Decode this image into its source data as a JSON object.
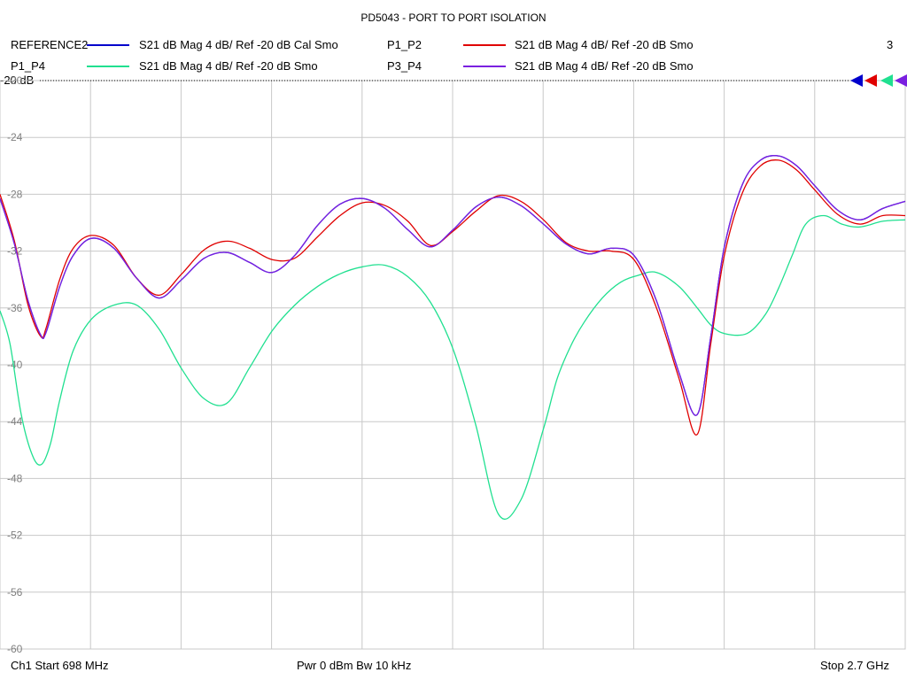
{
  "title": "PD5043 - PORT TO PORT ISOLATION",
  "legend": [
    {
      "name": "REFERENCE2",
      "desc": "S21  dB Mag  4 dB/ Ref -20 dB  Cal Smo",
      "color": "#0000cc"
    },
    {
      "name": "P1_P2",
      "desc": "S21  dB Mag  4 dB/ Ref -20 dB  Smo",
      "color": "#e00000"
    },
    {
      "name": "P1_P4",
      "desc": "S21  dB Mag  4 dB/ Ref -20 dB  Smo",
      "color": "#20e090"
    },
    {
      "name": "P3_P4",
      "desc": "S21  dB Mag  4 dB/ Ref -20 dB  Smo",
      "color": "#7a20e0"
    }
  ],
  "trace_count": "3",
  "ref_label": "-20 dB",
  "footer": {
    "start": "Ch1  Start  698 MHz",
    "power": "Pwr  0 dBm  Bw  10 kHz",
    "stop": "Stop  2.7 GHz"
  },
  "chart_data": {
    "type": "line",
    "title": "PD5043 - PORT TO PORT ISOLATION",
    "xlim": [
      698,
      2700
    ],
    "ylim": [
      -60,
      -20
    ],
    "x_unit": "MHz",
    "y_unit": "dB",
    "yticks": [
      -20,
      -24,
      -28,
      -32,
      -36,
      -40,
      -44,
      -48,
      -52,
      -56,
      -60
    ],
    "ytick_labels": [
      "-20",
      "-24",
      "-28",
      "-32",
      "-36",
      "-40",
      "-44",
      "-48",
      "-52",
      "-56",
      "-60"
    ],
    "grid": true,
    "series": [
      {
        "name": "REFERENCE2",
        "color": "#0000cc",
        "x": [
          698,
          730,
          760,
          788,
          800,
          830,
          860,
          900,
          950,
          1000,
          1050,
          1100,
          1150,
          1200,
          1250,
          1300,
          1350,
          1400,
          1450,
          1500,
          1550,
          1600,
          1650,
          1700,
          1750,
          1800,
          1850,
          1900,
          1950,
          2000,
          2050,
          2100,
          2150,
          2200,
          2240,
          2270,
          2300,
          2340,
          2380,
          2420,
          2460,
          2500,
          2550,
          2600,
          2650,
          2700
        ],
        "y": [
          -28.3,
          -31.5,
          -35.5,
          -37.9,
          -37.7,
          -34.5,
          -32.3,
          -31.1,
          -31.8,
          -33.9,
          -35.3,
          -34.0,
          -32.5,
          -32.1,
          -32.8,
          -33.5,
          -32.3,
          -30.2,
          -28.7,
          -28.3,
          -29.0,
          -30.5,
          -31.7,
          -30.5,
          -28.9,
          -28.2,
          -28.8,
          -30.1,
          -31.5,
          -32.2,
          -31.8,
          -32.3,
          -35.5,
          -40.6,
          -43.5,
          -38.0,
          -31.7,
          -27.3,
          -25.6,
          -25.3,
          -26.0,
          -27.4,
          -29.1,
          -29.8,
          -29.0,
          -28.5
        ]
      },
      {
        "name": "P1_P2",
        "color": "#e00000",
        "x": [
          698,
          730,
          760,
          788,
          800,
          830,
          860,
          900,
          950,
          1000,
          1050,
          1100,
          1150,
          1200,
          1250,
          1300,
          1350,
          1400,
          1450,
          1500,
          1550,
          1600,
          1650,
          1700,
          1750,
          1800,
          1850,
          1900,
          1950,
          2000,
          2050,
          2100,
          2150,
          2200,
          2240,
          2270,
          2300,
          2340,
          2380,
          2420,
          2460,
          2500,
          2550,
          2600,
          2650,
          2700
        ],
        "y": [
          -28.0,
          -31.3,
          -35.8,
          -38.0,
          -37.4,
          -34.0,
          -31.8,
          -30.9,
          -31.6,
          -33.9,
          -35.1,
          -33.6,
          -31.9,
          -31.3,
          -31.8,
          -32.6,
          -32.5,
          -31.0,
          -29.5,
          -28.6,
          -28.8,
          -29.9,
          -31.6,
          -30.6,
          -29.2,
          -28.1,
          -28.5,
          -29.8,
          -31.4,
          -32.0,
          -32.0,
          -32.6,
          -36.0,
          -41.0,
          -44.9,
          -38.5,
          -32.3,
          -27.9,
          -26.0,
          -25.6,
          -26.3,
          -27.7,
          -29.4,
          -30.1,
          -29.5,
          -29.5
        ]
      },
      {
        "name": "P1_P4",
        "color": "#20e090",
        "x": [
          698,
          720,
          745,
          770,
          790,
          810,
          830,
          860,
          900,
          950,
          1000,
          1050,
          1100,
          1150,
          1200,
          1250,
          1300,
          1350,
          1400,
          1450,
          1500,
          1550,
          1600,
          1650,
          1700,
          1750,
          1800,
          1850,
          1900,
          1930,
          1960,
          1990,
          2030,
          2070,
          2110,
          2150,
          2200,
          2240,
          2270,
          2300,
          2350,
          2390,
          2420,
          2450,
          2480,
          2520,
          2560,
          2600,
          2650,
          2700
        ],
        "y": [
          -36.2,
          -38.5,
          -43.5,
          -46.4,
          -47.0,
          -45.5,
          -42.5,
          -39.0,
          -36.8,
          -35.8,
          -35.8,
          -37.5,
          -40.3,
          -42.4,
          -42.7,
          -40.2,
          -37.6,
          -35.8,
          -34.5,
          -33.6,
          -33.1,
          -33.0,
          -33.8,
          -35.6,
          -38.9,
          -44.2,
          -50.5,
          -49.5,
          -44.5,
          -41.0,
          -38.7,
          -37.0,
          -35.3,
          -34.2,
          -33.7,
          -33.5,
          -34.5,
          -36.0,
          -37.2,
          -37.8,
          -37.8,
          -36.5,
          -34.6,
          -32.3,
          -30.1,
          -29.5,
          -30.1,
          -30.3,
          -29.9,
          -29.8
        ]
      },
      {
        "name": "P3_P4",
        "color": "#7a20e0",
        "x": [
          698,
          730,
          760,
          788,
          800,
          830,
          860,
          900,
          950,
          1000,
          1050,
          1100,
          1150,
          1200,
          1250,
          1300,
          1350,
          1400,
          1450,
          1500,
          1550,
          1600,
          1650,
          1700,
          1750,
          1800,
          1850,
          1900,
          1950,
          2000,
          2050,
          2100,
          2150,
          2200,
          2240,
          2270,
          2300,
          2340,
          2380,
          2420,
          2460,
          2500,
          2550,
          2600,
          2650,
          2700
        ],
        "y": [
          -28.3,
          -31.5,
          -35.5,
          -37.9,
          -37.7,
          -34.5,
          -32.3,
          -31.1,
          -31.8,
          -33.9,
          -35.3,
          -34.0,
          -32.5,
          -32.1,
          -32.8,
          -33.5,
          -32.3,
          -30.2,
          -28.7,
          -28.3,
          -29.0,
          -30.5,
          -31.7,
          -30.5,
          -28.9,
          -28.2,
          -28.8,
          -30.1,
          -31.5,
          -32.2,
          -31.8,
          -32.3,
          -35.5,
          -40.6,
          -43.5,
          -38.0,
          -31.7,
          -27.3,
          -25.6,
          -25.3,
          -26.0,
          -27.4,
          -29.1,
          -29.8,
          -29.0,
          -28.5
        ]
      }
    ]
  }
}
